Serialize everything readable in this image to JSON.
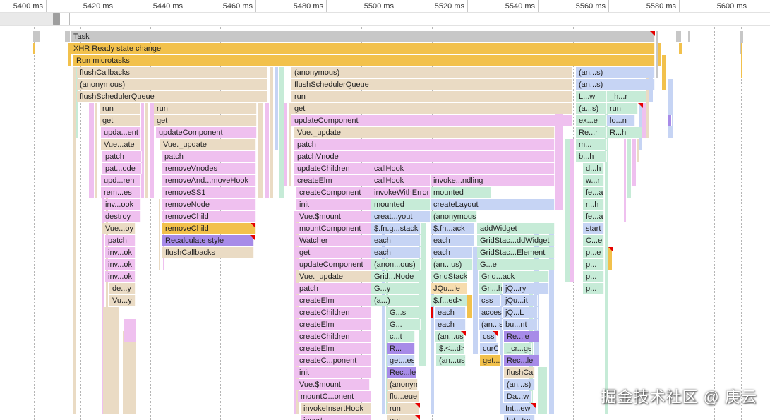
{
  "ruler": {
    "ticks": [
      "5400 ms",
      "5420 ms",
      "5440 ms",
      "5460 ms",
      "5480 ms",
      "5500 ms",
      "5520 ms",
      "5540 ms",
      "5560 ms",
      "5580 ms",
      "5600 ms"
    ]
  },
  "flame": {
    "entries": [
      {
        "text": "Task",
        "color": "#c7c7c7"
      },
      {
        "text": "XHR Ready state change",
        "color": "#f2c14c"
      },
      {
        "text": "Run microtasks",
        "color": "#f2c14c"
      },
      {
        "text": "flushCallbacks",
        "color": "#eadbc4"
      },
      {
        "text": "(anonymous)",
        "color": "#eadbc4"
      },
      {
        "text": "flushSchedulerQueue",
        "color": "#eadbc4"
      },
      {
        "text": "run",
        "color": "#eadbc4"
      },
      {
        "text": "get",
        "color": "#eadbc4"
      },
      {
        "text": "upda...ent",
        "color": "#efc0ef"
      },
      {
        "text": "Vue...ate",
        "color": "#eadbc4"
      },
      {
        "text": "patch",
        "color": "#efc0ef"
      },
      {
        "text": "pat...ode",
        "color": "#efc0ef"
      },
      {
        "text": "upd...ren",
        "color": "#efc0ef"
      },
      {
        "text": "rem...es",
        "color": "#efc0ef"
      },
      {
        "text": "inv...ook",
        "color": "#efc0ef"
      },
      {
        "text": "destroy",
        "color": "#efc0ef"
      },
      {
        "text": "Vue...oy",
        "color": "#eadbc4"
      },
      {
        "text": "patch",
        "color": "#efc0ef"
      },
      {
        "text": "inv...ok",
        "color": "#efc0ef"
      },
      {
        "text": "inv...ok",
        "color": "#efc0ef"
      },
      {
        "text": "inv...ok",
        "color": "#efc0ef"
      },
      {
        "text": "de...y",
        "color": "#eadbc4"
      },
      {
        "text": "Vu...y",
        "color": "#eadbc4"
      },
      {
        "text": "run",
        "color": "#eadbc4"
      },
      {
        "text": "get",
        "color": "#eadbc4"
      },
      {
        "text": "updateComponent",
        "color": "#efc0ef"
      },
      {
        "text": "Vue._update",
        "color": "#eadbc4"
      },
      {
        "text": "patch",
        "color": "#efc0ef"
      },
      {
        "text": "removeVnodes",
        "color": "#efc0ef"
      },
      {
        "text": "removeAnd...moveHook",
        "color": "#efc0ef"
      },
      {
        "text": "removeSS1",
        "color": "#efc0ef"
      },
      {
        "text": "removeNode",
        "color": "#efc0ef"
      },
      {
        "text": "removeChild",
        "color": "#efc0ef"
      },
      {
        "text": "removeChild",
        "color": "#f2c14c"
      },
      {
        "text": "Recalculate style",
        "color": "#a78be8"
      },
      {
        "text": "flushCallbacks",
        "color": "#eadbc4"
      },
      {
        "text": "(anonymous)",
        "color": "#eadbc4"
      },
      {
        "text": "flushSchedulerQueue",
        "color": "#eadbc4"
      },
      {
        "text": "run",
        "color": "#eadbc4"
      },
      {
        "text": "get",
        "color": "#eadbc4"
      },
      {
        "text": "updateComponent",
        "color": "#efc0ef"
      },
      {
        "text": "Vue._update",
        "color": "#eadbc4"
      },
      {
        "text": "patch",
        "color": "#efc0ef"
      },
      {
        "text": "patchVnode",
        "color": "#efc0ef"
      },
      {
        "text": "updateChildren",
        "color": "#efc0ef"
      },
      {
        "text": "createElm",
        "color": "#efc0ef"
      },
      {
        "text": "createComponent",
        "color": "#efc0ef"
      },
      {
        "text": "init",
        "color": "#efc0ef"
      },
      {
        "text": "Vue.$mount",
        "color": "#efc0ef"
      },
      {
        "text": "mountComponent",
        "color": "#efc0ef"
      },
      {
        "text": "Watcher",
        "color": "#efc0ef"
      },
      {
        "text": "get",
        "color": "#efc0ef"
      },
      {
        "text": "updateComponent",
        "color": "#efc0ef"
      },
      {
        "text": "Vue._update",
        "color": "#eadbc4"
      },
      {
        "text": "patch",
        "color": "#efc0ef"
      },
      {
        "text": "createElm",
        "color": "#efc0ef"
      },
      {
        "text": "createChildren",
        "color": "#efc0ef"
      },
      {
        "text": "createElm",
        "color": "#efc0ef"
      },
      {
        "text": "createChildren",
        "color": "#efc0ef"
      },
      {
        "text": "createElm",
        "color": "#efc0ef"
      },
      {
        "text": "createC...ponent",
        "color": "#efc0ef"
      },
      {
        "text": "init",
        "color": "#efc0ef"
      },
      {
        "text": "Vue.$mount",
        "color": "#efc0ef"
      },
      {
        "text": "mountC...onent",
        "color": "#efc0ef"
      },
      {
        "text": "invokeInsertHook",
        "color": "#eadbc4"
      },
      {
        "text": "insert",
        "color": "#efc0ef"
      },
      {
        "text": "insert",
        "color": "#efc0ef"
      },
      {
        "text": "callHook",
        "color": "#efc0ef"
      },
      {
        "text": "callHook",
        "color": "#efc0ef"
      },
      {
        "text": "invoke...ndling",
        "color": "#efc0ef"
      },
      {
        "text": "invokeWithErrorHandling",
        "color": "#efc0ef"
      },
      {
        "text": "mounted",
        "color": "#c6ebd7"
      },
      {
        "text": "mounted",
        "color": "#c6ebd7"
      },
      {
        "text": "createLayout",
        "color": "#c6d4f4"
      },
      {
        "text": "creat...yout",
        "color": "#c6d4f4"
      },
      {
        "text": "(anonymous)",
        "color": "#c6ebd7"
      },
      {
        "text": "$.fn.g...stack",
        "color": "#c6d4f4"
      },
      {
        "text": "$.fn...ack",
        "color": "#c6d4f4"
      },
      {
        "text": "addWidget",
        "color": "#c6ebd7"
      },
      {
        "text": "each",
        "color": "#c6d4f4"
      },
      {
        "text": "each",
        "color": "#c6d4f4"
      },
      {
        "text": "GridStac...ddWidget",
        "color": "#c6ebd7"
      },
      {
        "text": "each",
        "color": "#c6d4f4"
      },
      {
        "text": "each",
        "color": "#c6d4f4"
      },
      {
        "text": "GridStac...Element",
        "color": "#c6ebd7"
      },
      {
        "text": "(anon...ous)",
        "color": "#c6ebd7"
      },
      {
        "text": "(an...us)",
        "color": "#c6ebd7"
      },
      {
        "text": "G...e",
        "color": "#c6ebd7"
      },
      {
        "text": "Grid...Node",
        "color": "#c6ebd7"
      },
      {
        "text": "GridStack",
        "color": "#c6ebd7"
      },
      {
        "text": "Grid...ack",
        "color": "#c6ebd7"
      },
      {
        "text": "G...y",
        "color": "#c6ebd7"
      },
      {
        "text": "JQu...le",
        "color": "#f6dcae"
      },
      {
        "text": "Gri...ht",
        "color": "#c6ebd7"
      },
      {
        "text": "jQ...ry",
        "color": "#c6d4f4"
      },
      {
        "text": "(a...)",
        "color": "#c6ebd7"
      },
      {
        "text": "$.f...ed>",
        "color": "#c6ebd7"
      },
      {
        "text": "css",
        "color": "#c6d4f4"
      },
      {
        "text": "jQu...it",
        "color": "#c6d4f4"
      },
      {
        "text": "G...s",
        "color": "#c6ebd7"
      },
      {
        "text": "each",
        "color": "#c6d4f4"
      },
      {
        "text": "access",
        "color": "#c6d4f4"
      },
      {
        "text": "jQ...L",
        "color": "#c6d4f4"
      },
      {
        "text": "G...",
        "color": "#c6ebd7"
      },
      {
        "text": "each",
        "color": "#c6d4f4"
      },
      {
        "text": "(an...s)",
        "color": "#c6d4f4"
      },
      {
        "text": "bu...nt",
        "color": "#c6d4f4"
      },
      {
        "text": "c...t",
        "color": "#c6ebd7"
      },
      {
        "text": "(an...us)",
        "color": "#c6ebd7"
      },
      {
        "text": "css",
        "color": "#c6d4f4"
      },
      {
        "text": "Re...le",
        "color": "#a78be8"
      },
      {
        "text": "R...",
        "color": "#a78be8"
      },
      {
        "text": "$.<...d>",
        "color": "#c6ebd7"
      },
      {
        "text": "curCSS",
        "color": "#c6d4f4"
      },
      {
        "text": "_cr...get",
        "color": "#c6ebd7"
      },
      {
        "text": "get...es",
        "color": "#c6d4f4"
      },
      {
        "text": "(an...us)",
        "color": "#c6ebd7"
      },
      {
        "text": "get...er",
        "color": "#f2c14c"
      },
      {
        "text": "Rec...le",
        "color": "#a78be8"
      },
      {
        "text": "Rec...le",
        "color": "#a78be8"
      },
      {
        "text": "flushCallbacks",
        "color": "#eadbc4"
      },
      {
        "text": "(anonymous)",
        "color": "#eadbc4"
      },
      {
        "text": "(an...s)",
        "color": "#c6d4f4"
      },
      {
        "text": "flu...eue",
        "color": "#eadbc4"
      },
      {
        "text": "Da...w",
        "color": "#c6d4f4"
      },
      {
        "text": "run",
        "color": "#eadbc4"
      },
      {
        "text": "Int...ew",
        "color": "#c6d4f4"
      },
      {
        "text": "get",
        "color": "#eadbc4"
      },
      {
        "text": "Int...ter",
        "color": "#c6d4f4"
      },
      {
        "text": "upd...nt",
        "color": "#efc0ef"
      },
      {
        "text": "(an...s)",
        "color": "#c6d4f4"
      },
      {
        "text": "(an...s)",
        "color": "#c6d4f4"
      },
      {
        "text": "L...w",
        "color": "#c6ebd7"
      },
      {
        "text": "_h...r",
        "color": "#c6ebd7"
      },
      {
        "text": "(a...s)",
        "color": "#c6ebd7"
      },
      {
        "text": "run",
        "color": "#c6ebd7"
      },
      {
        "text": "ex...e",
        "color": "#c6ebd7"
      },
      {
        "text": "lo...n",
        "color": "#c6d4f4"
      },
      {
        "text": "Re...r",
        "color": "#c6ebd7"
      },
      {
        "text": "R...h",
        "color": "#c6ebd7"
      },
      {
        "text": "m...",
        "color": "#c6ebd7"
      },
      {
        "text": "b...h",
        "color": "#c6ebd7"
      },
      {
        "text": "d...h",
        "color": "#c6ebd7"
      },
      {
        "text": "w...r",
        "color": "#c6ebd7"
      },
      {
        "text": "fe...a",
        "color": "#c6ebd7"
      },
      {
        "text": "r...h",
        "color": "#c6ebd7"
      },
      {
        "text": "fe...a",
        "color": "#c6ebd7"
      },
      {
        "text": "start",
        "color": "#c6d4f4"
      },
      {
        "text": "C...e",
        "color": "#c6ebd7"
      },
      {
        "text": "p...e",
        "color": "#c6ebd7"
      },
      {
        "text": "p...",
        "color": "#c6ebd7"
      },
      {
        "text": "p...",
        "color": "#c6ebd7"
      },
      {
        "text": "p...",
        "color": "#c6ebd7"
      }
    ]
  },
  "watermark": "掘金技术社区 @ 庚云"
}
